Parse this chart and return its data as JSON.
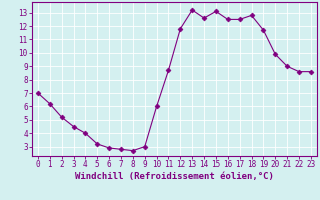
{
  "x": [
    0,
    1,
    2,
    3,
    4,
    5,
    6,
    7,
    8,
    9,
    10,
    11,
    12,
    13,
    14,
    15,
    16,
    17,
    18,
    19,
    20,
    21,
    22,
    23
  ],
  "y": [
    7,
    6.2,
    5.2,
    4.5,
    4.0,
    3.2,
    2.9,
    2.8,
    2.7,
    3.0,
    6.0,
    8.7,
    11.8,
    13.2,
    12.6,
    13.1,
    12.5,
    12.5,
    12.8,
    11.7,
    9.9,
    9.0,
    8.6,
    8.6
  ],
  "line_color": "#800080",
  "marker": "D",
  "marker_size": 2.5,
  "xlim": [
    -0.5,
    23.5
  ],
  "ylim": [
    2.3,
    13.8
  ],
  "yticks": [
    3,
    4,
    5,
    6,
    7,
    8,
    9,
    10,
    11,
    12,
    13
  ],
  "xticks": [
    0,
    1,
    2,
    3,
    4,
    5,
    6,
    7,
    8,
    9,
    10,
    11,
    12,
    13,
    14,
    15,
    16,
    17,
    18,
    19,
    20,
    21,
    22,
    23
  ],
  "xlabel": "Windchill (Refroidissement éolien,°C)",
  "background_color": "#d4f0f0",
  "grid_color": "#ffffff",
  "axis_color": "#800080",
  "tick_color": "#800080",
  "label_color": "#800080",
  "tick_fontsize": 5.5,
  "label_fontsize": 6.5
}
